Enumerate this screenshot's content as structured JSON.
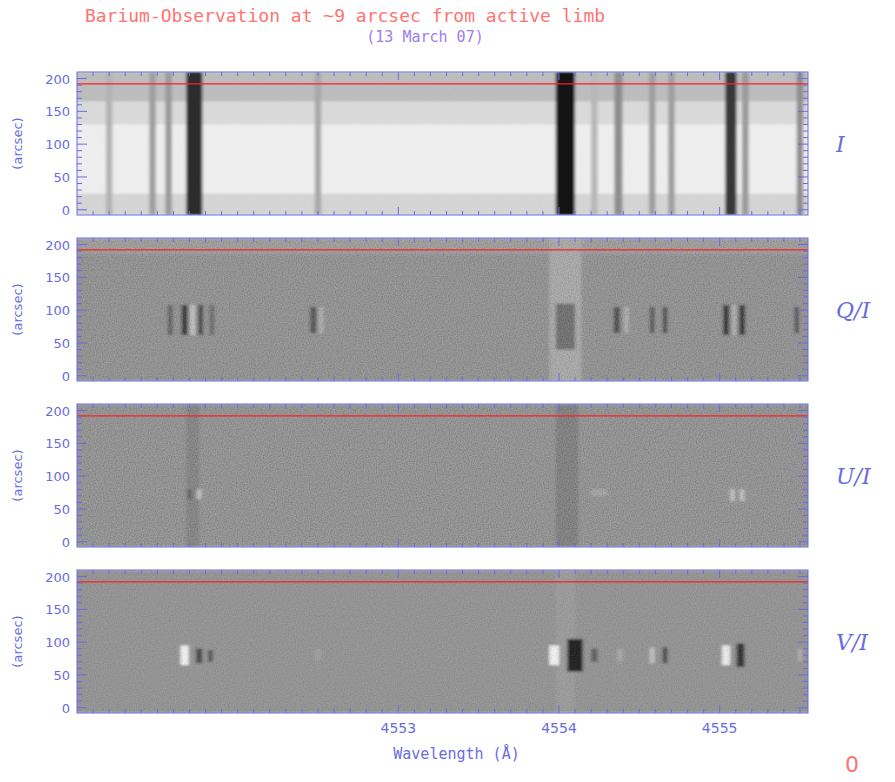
{
  "title": "Barium-Observation at ~9 arcsec from active limb",
  "subtitle": "(13 March 07)",
  "corner_label": "0",
  "chart_data": [
    {
      "type": "heatmap",
      "label": "I",
      "ylabel": "(arcsec)",
      "tick_labels": "y",
      "xlim": [
        4551.0,
        4555.55
      ],
      "ylim": [
        -8,
        210
      ],
      "xticks": [
        4553,
        4554,
        4555
      ],
      "yticks": [
        0,
        50,
        100,
        150,
        200
      ],
      "xminorticks": [
        4551.1,
        4551.2,
        4551.3,
        4551.4,
        4551.5,
        4551.6,
        4551.7,
        4551.8,
        4551.9,
        4552.0,
        4552.1,
        4552.2,
        4552.3,
        4552.4,
        4552.5,
        4552.6,
        4552.7,
        4552.8,
        4552.9,
        4553.1,
        4553.2,
        4553.3,
        4553.4,
        4553.5,
        4553.6,
        4553.7,
        4553.8,
        4553.9,
        4554.1,
        4554.2,
        4554.3,
        4554.4,
        4554.5,
        4554.6,
        4554.7,
        4554.8,
        4554.9,
        4555.1,
        4555.2,
        4555.3,
        4555.4,
        4555.5
      ],
      "yminorticks": [
        10,
        20,
        30,
        40,
        60,
        70,
        80,
        90,
        110,
        120,
        130,
        140,
        160,
        170,
        180,
        190
      ],
      "zlim": [
        0,
        1
      ],
      "hline": 192,
      "rows": [
        {
          "y": [
            -8,
            25
          ],
          "value": 0.84
        },
        {
          "y": [
            25,
            130
          ],
          "value": 0.94
        },
        {
          "y": [
            130,
            165
          ],
          "value": 0.86
        },
        {
          "y": [
            165,
            210
          ],
          "value": 0.74
        }
      ],
      "features": [
        {
          "x": 4551.2,
          "width": 0.04,
          "y": [
            -8,
            210
          ],
          "value": 0.7
        },
        {
          "x": 4551.47,
          "width": 0.04,
          "y": [
            -8,
            210
          ],
          "value": 0.62
        },
        {
          "x": 4551.57,
          "width": 0.04,
          "y": [
            -8,
            210
          ],
          "value": 0.6
        },
        {
          "x": 4551.73,
          "width": 0.1,
          "y": [
            -8,
            210
          ],
          "value": 0.15
        },
        {
          "x": 4552.5,
          "width": 0.04,
          "y": [
            -8,
            210
          ],
          "value": 0.66
        },
        {
          "x": 4554.04,
          "width": 0.12,
          "y": [
            -8,
            210
          ],
          "value": 0.05
        },
        {
          "x": 4554.22,
          "width": 0.04,
          "y": [
            -8,
            210
          ],
          "value": 0.72
        },
        {
          "x": 4554.37,
          "width": 0.05,
          "y": [
            -8,
            210
          ],
          "value": 0.55
        },
        {
          "x": 4554.58,
          "width": 0.04,
          "y": [
            -8,
            210
          ],
          "value": 0.62
        },
        {
          "x": 4554.7,
          "width": 0.04,
          "y": [
            -8,
            210
          ],
          "value": 0.62
        },
        {
          "x": 4555.07,
          "width": 0.07,
          "y": [
            -8,
            210
          ],
          "value": 0.2
        },
        {
          "x": 4555.16,
          "width": 0.04,
          "y": [
            -8,
            210
          ],
          "value": 0.6
        },
        {
          "x": 4555.5,
          "width": 0.04,
          "y": [
            -8,
            210
          ],
          "value": 0.55
        }
      ]
    },
    {
      "type": "heatmap",
      "label": "Q/I",
      "ylabel": "(arcsec)",
      "tick_labels": "y",
      "xlim": [
        4551.0,
        4555.55
      ],
      "ylim": [
        -8,
        210
      ],
      "xticks": [
        4553,
        4554,
        4555
      ],
      "yticks": [
        0,
        50,
        100,
        150,
        200
      ],
      "xminorticks": [
        4551.1,
        4551.2,
        4551.3,
        4551.4,
        4551.5,
        4551.6,
        4551.7,
        4551.8,
        4551.9,
        4552.0,
        4552.1,
        4552.2,
        4552.3,
        4552.4,
        4552.5,
        4552.6,
        4552.7,
        4552.8,
        4552.9,
        4553.1,
        4553.2,
        4553.3,
        4553.4,
        4553.5,
        4553.6,
        4553.7,
        4553.8,
        4553.9,
        4554.1,
        4554.2,
        4554.3,
        4554.4,
        4554.5,
        4554.6,
        4554.7,
        4554.8,
        4554.9,
        4555.1,
        4555.2,
        4555.3,
        4555.4,
        4555.5
      ],
      "yminorticks": [
        10,
        20,
        30,
        40,
        60,
        70,
        80,
        90,
        110,
        120,
        130,
        140,
        160,
        170,
        180,
        190
      ],
      "zlim": [
        -1,
        1
      ],
      "hline": 192,
      "rows": [
        {
          "y": [
            -8,
            210
          ],
          "value": 0.0
        },
        {
          "y": [
            185,
            210
          ],
          "value": 0.12
        }
      ],
      "features": [
        {
          "x": 4551.58,
          "width": 0.03,
          "y": [
            62,
            108
          ],
          "value": -0.5
        },
        {
          "x": 4551.67,
          "width": 0.04,
          "y": [
            62,
            108
          ],
          "value": -0.95
        },
        {
          "x": 4551.72,
          "width": 0.03,
          "y": [
            62,
            108
          ],
          "value": 0.5
        },
        {
          "x": 4551.77,
          "width": 0.03,
          "y": [
            62,
            108
          ],
          "value": -0.8
        },
        {
          "x": 4551.84,
          "width": 0.03,
          "y": [
            62,
            108
          ],
          "value": -0.4
        },
        {
          "x": 4552.47,
          "width": 0.04,
          "y": [
            65,
            105
          ],
          "value": -0.6
        },
        {
          "x": 4552.52,
          "width": 0.03,
          "y": [
            65,
            105
          ],
          "value": 0.3
        },
        {
          "x": 4554.04,
          "width": 0.2,
          "y": [
            -8,
            210
          ],
          "value": 0.25
        },
        {
          "x": 4554.04,
          "width": 0.12,
          "y": [
            40,
            110
          ],
          "value": -0.35
        },
        {
          "x": 4554.36,
          "width": 0.04,
          "y": [
            65,
            105
          ],
          "value": -0.7
        },
        {
          "x": 4554.42,
          "width": 0.03,
          "y": [
            65,
            105
          ],
          "value": 0.3
        },
        {
          "x": 4554.58,
          "width": 0.03,
          "y": [
            65,
            105
          ],
          "value": -0.6
        },
        {
          "x": 4554.66,
          "width": 0.03,
          "y": [
            65,
            105
          ],
          "value": -0.7
        },
        {
          "x": 4555.04,
          "width": 0.04,
          "y": [
            62,
            108
          ],
          "value": -0.95
        },
        {
          "x": 4555.09,
          "width": 0.02,
          "y": [
            62,
            108
          ],
          "value": 0.4
        },
        {
          "x": 4555.14,
          "width": 0.04,
          "y": [
            62,
            108
          ],
          "value": -0.95
        },
        {
          "x": 4555.48,
          "width": 0.03,
          "y": [
            65,
            105
          ],
          "value": -0.6
        }
      ]
    },
    {
      "type": "heatmap",
      "label": "U/I",
      "ylabel": "(arcsec)",
      "tick_labels": "y",
      "xlim": [
        4551.0,
        4555.55
      ],
      "ylim": [
        -8,
        210
      ],
      "xticks": [
        4553,
        4554,
        4555
      ],
      "yticks": [
        0,
        50,
        100,
        150,
        200
      ],
      "xminorticks": [
        4551.1,
        4551.2,
        4551.3,
        4551.4,
        4551.5,
        4551.6,
        4551.7,
        4551.8,
        4551.9,
        4552.0,
        4552.1,
        4552.2,
        4552.3,
        4552.4,
        4552.5,
        4552.6,
        4552.7,
        4552.8,
        4552.9,
        4553.1,
        4553.2,
        4553.3,
        4553.4,
        4553.5,
        4553.6,
        4553.7,
        4553.8,
        4553.9,
        4554.1,
        4554.2,
        4554.3,
        4554.4,
        4554.5,
        4554.6,
        4554.7,
        4554.8,
        4554.9,
        4555.1,
        4555.2,
        4555.3,
        4555.4,
        4555.5
      ],
      "yminorticks": [
        10,
        20,
        30,
        40,
        60,
        70,
        80,
        90,
        110,
        120,
        130,
        140,
        160,
        170,
        180,
        190
      ],
      "zlim": [
        -1,
        1
      ],
      "hline": 192,
      "rows": [
        {
          "y": [
            -8,
            210
          ],
          "value": 0.0
        }
      ],
      "features": [
        {
          "x": 4551.72,
          "width": 0.08,
          "y": [
            -8,
            210
          ],
          "value": -0.15
        },
        {
          "x": 4554.05,
          "width": 0.14,
          "y": [
            -8,
            210
          ],
          "value": -0.2
        },
        {
          "x": 4551.7,
          "width": 0.03,
          "y": [
            65,
            80
          ],
          "value": -0.5
        },
        {
          "x": 4551.76,
          "width": 0.03,
          "y": [
            65,
            80
          ],
          "value": 0.5
        },
        {
          "x": 4554.25,
          "width": 0.1,
          "y": [
            70,
            80
          ],
          "value": 0.2
        },
        {
          "x": 4555.08,
          "width": 0.03,
          "y": [
            62,
            80
          ],
          "value": 0.5
        },
        {
          "x": 4555.14,
          "width": 0.03,
          "y": [
            62,
            80
          ],
          "value": 0.5
        }
      ]
    },
    {
      "type": "heatmap",
      "label": "V/I",
      "ylabel": "(arcsec)",
      "xlabel": "Wavelength (Å)",
      "xlim": [
        4551.0,
        4555.55
      ],
      "ylim": [
        -8,
        210
      ],
      "xticks": [
        4553,
        4554,
        4555
      ],
      "yticks": [
        0,
        50,
        100,
        150,
        200
      ],
      "xminorticks": [
        4551.1,
        4551.2,
        4551.3,
        4551.4,
        4551.5,
        4551.6,
        4551.7,
        4551.8,
        4551.9,
        4552.0,
        4552.1,
        4552.2,
        4552.3,
        4552.4,
        4552.5,
        4552.6,
        4552.7,
        4552.8,
        4552.9,
        4553.1,
        4553.2,
        4553.3,
        4553.4,
        4553.5,
        4553.6,
        4553.7,
        4553.8,
        4553.9,
        4554.1,
        4554.2,
        4554.3,
        4554.4,
        4554.5,
        4554.6,
        4554.7,
        4554.8,
        4554.9,
        4555.1,
        4555.2,
        4555.3,
        4555.4,
        4555.5
      ],
      "yminorticks": [
        10,
        20,
        30,
        40,
        60,
        70,
        80,
        90,
        110,
        120,
        130,
        140,
        160,
        170,
        180,
        190
      ],
      "zlim": [
        -1,
        1
      ],
      "hline": 192,
      "rows": [
        {
          "y": [
            -8,
            210
          ],
          "value": 0.08
        }
      ],
      "features": [
        {
          "x": 4554.04,
          "width": 0.12,
          "y": [
            -8,
            210
          ],
          "value": 0.15
        },
        {
          "x": 4551.67,
          "width": 0.05,
          "y": [
            65,
            95
          ],
          "value": 0.95
        },
        {
          "x": 4551.76,
          "width": 0.04,
          "y": [
            68,
            90
          ],
          "value": -0.6
        },
        {
          "x": 4551.83,
          "width": 0.03,
          "y": [
            70,
            88
          ],
          "value": -0.5
        },
        {
          "x": 4552.5,
          "width": 0.04,
          "y": [
            72,
            90
          ],
          "value": 0.2
        },
        {
          "x": 4553.97,
          "width": 0.06,
          "y": [
            65,
            95
          ],
          "value": 0.95
        },
        {
          "x": 4554.1,
          "width": 0.1,
          "y": [
            55,
            105
          ],
          "value": -0.95
        },
        {
          "x": 4554.22,
          "width": 0.04,
          "y": [
            70,
            90
          ],
          "value": -0.4
        },
        {
          "x": 4554.38,
          "width": 0.03,
          "y": [
            70,
            90
          ],
          "value": 0.3
        },
        {
          "x": 4554.58,
          "width": 0.03,
          "y": [
            68,
            92
          ],
          "value": 0.5
        },
        {
          "x": 4554.66,
          "width": 0.03,
          "y": [
            68,
            92
          ],
          "value": -0.6
        },
        {
          "x": 4555.04,
          "width": 0.05,
          "y": [
            65,
            95
          ],
          "value": 0.9
        },
        {
          "x": 4555.13,
          "width": 0.05,
          "y": [
            62,
            98
          ],
          "value": -0.8
        },
        {
          "x": 4555.5,
          "width": 0.03,
          "y": [
            70,
            90
          ],
          "value": 0.3
        }
      ]
    }
  ]
}
